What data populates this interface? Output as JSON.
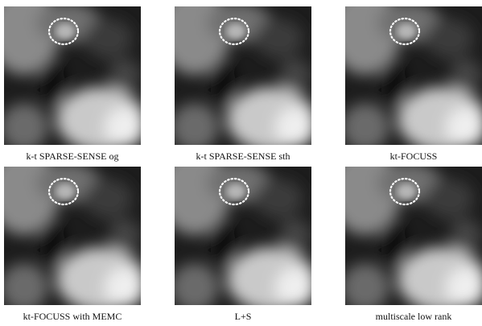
{
  "figure": {
    "panels": [
      {
        "caption": "k-t SPARSE-SENSE og"
      },
      {
        "caption": "k-t SPARSE-SENSE sth"
      },
      {
        "caption": "kt-FOCUSS"
      },
      {
        "caption": "kt-FOCUSS with MEMC"
      },
      {
        "caption": "L+S"
      },
      {
        "caption": "multiscale low rank"
      }
    ]
  }
}
